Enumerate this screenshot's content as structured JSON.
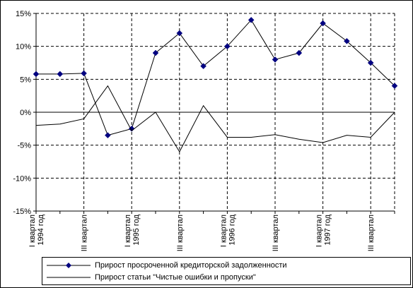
{
  "chart_data": {
    "type": "line",
    "title": "",
    "xlabel": "",
    "ylabel": "",
    "ylim": [
      -15,
      15
    ],
    "yticks": [
      -15,
      -10,
      -5,
      0,
      5,
      10,
      15
    ],
    "ytick_labels": [
      "-15%",
      "-10%",
      "-5%",
      "0%",
      "5%",
      "10%",
      "15%"
    ],
    "x_points": 16,
    "x_labels": [
      {
        "index": 0,
        "lines": [
          "I квартал",
          "1994 год"
        ]
      },
      {
        "index": 2,
        "lines": [
          "III квартал"
        ]
      },
      {
        "index": 4,
        "lines": [
          "I квартал",
          "1995 год"
        ]
      },
      {
        "index": 6,
        "lines": [
          "III квартал"
        ]
      },
      {
        "index": 8,
        "lines": [
          "I квартал",
          "1996 год"
        ]
      },
      {
        "index": 10,
        "lines": [
          "III квартал"
        ]
      },
      {
        "index": 12,
        "lines": [
          "I квартал",
          "1997 год"
        ]
      },
      {
        "index": 14,
        "lines": [
          "III квартал"
        ]
      }
    ],
    "grid": true,
    "legend_position": "bottom",
    "series": [
      {
        "name": "Прирост просроченной кредиторской задолженности",
        "marker": "diamond",
        "color": "#000080",
        "values": [
          5.8,
          5.8,
          5.9,
          -3.5,
          -2.5,
          9.0,
          12.0,
          7.0,
          10.0,
          14.0,
          8.0,
          9.0,
          13.5,
          10.8,
          7.5,
          4.0
        ]
      },
      {
        "name": "Прирост статьи \"Чистые ошибки и пропуски\"",
        "marker": "none",
        "color": "#000000",
        "values": [
          -2.0,
          -1.8,
          -1.0,
          4.0,
          -2.8,
          0.0,
          -6.0,
          1.0,
          -3.8,
          -3.8,
          -3.4,
          -4.1,
          -4.6,
          -3.5,
          -3.8,
          0.0
        ]
      }
    ]
  }
}
